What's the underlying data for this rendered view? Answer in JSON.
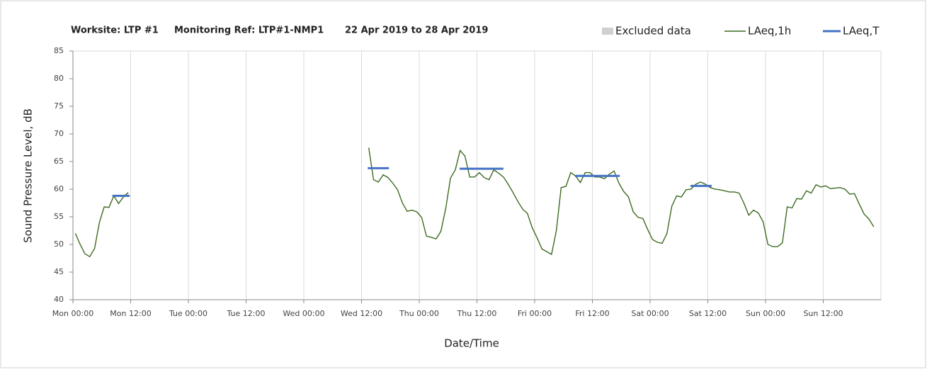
{
  "chart_data": {
    "type": "line",
    "title_parts": [
      "Worksite: LTP #1",
      "Monitoring Ref: LTP#1-NMP1",
      "22 Apr 2019 to 28 Apr 2019"
    ],
    "y_label": "Sound Pressure Level, dB",
    "x_label": "Date/Time",
    "xlim": [
      0,
      168
    ],
    "ylim": [
      40,
      85
    ],
    "yticks": [
      40,
      45,
      50,
      55,
      60,
      65,
      70,
      75,
      80,
      85
    ],
    "xticks": [
      {
        "value": 0,
        "label": "Mon 00:00"
      },
      {
        "value": 12,
        "label": "Mon 12:00"
      },
      {
        "value": 24,
        "label": "Tue 00:00"
      },
      {
        "value": 36,
        "label": "Tue 12:00"
      },
      {
        "value": 48,
        "label": "Wed 00:00"
      },
      {
        "value": 60,
        "label": "Wed 12:00"
      },
      {
        "value": 72,
        "label": "Thu 00:00"
      },
      {
        "value": 84,
        "label": "Thu 12:00"
      },
      {
        "value": 96,
        "label": "Fri 00:00"
      },
      {
        "value": 108,
        "label": "Fri 12:00"
      },
      {
        "value": 120,
        "label": "Sat 00:00"
      },
      {
        "value": 132,
        "label": "Sat 12:00"
      },
      {
        "value": 144,
        "label": "Sun 00:00"
      },
      {
        "value": 156,
        "label": "Sun 12:00"
      }
    ],
    "grid": true,
    "legend": "top-right",
    "series": [
      {
        "name": "Excluded data",
        "color": "#d0d0d0",
        "values": []
      },
      {
        "name": "LAeq,1h",
        "color": "#3d6b21",
        "x": [
          0.5,
          1.5,
          2.5,
          3.5,
          4.5,
          5.5,
          6.5,
          7.5,
          8.5,
          9.5,
          10.5,
          11.5,
          36,
          61.5,
          62.5,
          63.5,
          64.5,
          65.5,
          66.5,
          67.5,
          68.5,
          69.5,
          70.5,
          71.5,
          72.5,
          73.5,
          74.5,
          75.5,
          76.5,
          77.5,
          78.5,
          79.5,
          80.5,
          81.5,
          82.5,
          83.5,
          84.5,
          85.5,
          86.5,
          87.5,
          88.5,
          89.5,
          90.5,
          91.5,
          92.5,
          93.5,
          94.5,
          95.5,
          96.5,
          97.5,
          98.5,
          99.5,
          100.5,
          101.5,
          102.5,
          103.5,
          104.5,
          105.5,
          106.5,
          107.5,
          108.5,
          109.5,
          110.5,
          111.5,
          112.5,
          113.5,
          114.5,
          115.5,
          116.5,
          117.5,
          118.5,
          119.5,
          120.5,
          121.5,
          122.5,
          123.5,
          124.5,
          125.5,
          126.5,
          127.5,
          128.5,
          129.5,
          130.5,
          131.5,
          132.5,
          133.5,
          134.5,
          135.5,
          136.5,
          137.5,
          138.5,
          139.5,
          140.5,
          141.5,
          142.5,
          143.5,
          144.5,
          145.5,
          146.5,
          147.5,
          148.5,
          149.5,
          150.5,
          151.5,
          152.5,
          153.5,
          154.5,
          155.5,
          156.5,
          157.5,
          158.5,
          159.5,
          160.5,
          161.5,
          162.5,
          163.5,
          164.5,
          165.5,
          166.5
        ],
        "values": [
          52,
          50,
          48.3,
          47.8,
          49.3,
          54,
          56.8,
          56.7,
          58.8,
          57.4,
          58.6,
          59.4,
          null,
          67.5,
          61.7,
          61.3,
          62.6,
          62.1,
          61.1,
          59.9,
          57.5,
          56,
          56.2,
          55.9,
          54.9,
          51.5,
          51.3,
          51,
          52.4,
          56.5,
          62,
          63.5,
          67,
          66,
          62.2,
          62.2,
          63,
          62.1,
          61.7,
          63.5,
          62.9,
          62.2,
          60.9,
          59.4,
          57.8,
          56.4,
          55.6,
          53,
          51.2,
          49.2,
          48.7,
          48.2,
          52.5,
          60.3,
          60.5,
          63,
          62.4,
          61.2,
          63,
          63,
          62.2,
          62.2,
          61.9,
          62.7,
          63.3,
          61.1,
          59.6,
          58.6,
          55.9,
          54.9,
          54.7,
          52.7,
          50.9,
          50.4,
          50.2,
          52,
          56.9,
          58.8,
          58.6,
          59.9,
          60,
          60.9,
          61.3,
          60.9,
          60.3,
          60,
          59.9,
          59.7,
          59.5,
          59.5,
          59.3,
          57.5,
          55.3,
          56.2,
          55.7,
          54.1,
          50,
          49.6,
          49.6,
          50.3,
          56.8,
          56.6,
          58.3,
          58.2,
          59.7,
          59.3,
          60.8,
          60.4,
          60.6,
          60.1,
          60.2,
          60.3,
          60,
          59.1,
          59.2,
          57.3,
          55.5,
          54.6,
          53.2
        ]
      },
      {
        "name": "LAeq,T",
        "color": "#4472c4",
        "x_ranges": [
          [
            8.2,
            11.8
          ],
          [
            61.3,
            65.7
          ],
          [
            80.4,
            89.5
          ],
          [
            104.4,
            113.7
          ],
          [
            128.4,
            132.8
          ]
        ],
        "values": [
          58.8,
          63.8,
          63.7,
          62.4,
          60.6
        ]
      }
    ]
  }
}
